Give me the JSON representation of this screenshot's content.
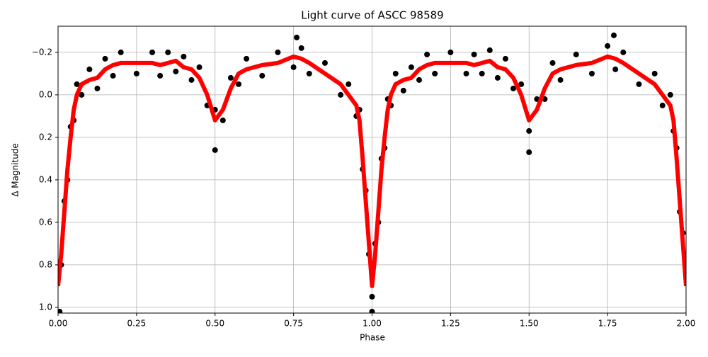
{
  "chart_data": {
    "type": "scatter",
    "title": "Light curve of ASCC 98589",
    "xlabel": "Phase",
    "ylabel": "Δ Magnitude",
    "xlim": [
      0,
      2
    ],
    "ylim": [
      -0.323,
      1.027
    ],
    "y_inverted": true,
    "grid": true,
    "xticks": [
      {
        "value": 0,
        "label": "0.00"
      },
      0.25,
      {
        "value": 0.5,
        "label": "0.50"
      },
      0.75,
      {
        "value": 1,
        "label": "1.00"
      },
      1.25,
      {
        "value": 1.5,
        "label": "1.50"
      },
      1.75,
      {
        "value": 2,
        "label": "2.00"
      }
    ],
    "yticks": [
      {
        "value": -0.2,
        "label": "−0.2"
      },
      {
        "value": 0,
        "label": "0.0"
      },
      0.2,
      0.4,
      0.6,
      0.8,
      {
        "value": 1,
        "label": "1.0"
      }
    ],
    "series": [
      {
        "type": "scatter",
        "color": "#000000",
        "x": [
          0,
          0.01,
          0.02,
          0.03,
          0.04,
          0.05,
          0.06,
          0.075,
          0.1,
          0.125,
          0.15,
          0.175,
          0.2,
          0.25,
          0.3,
          0.325,
          0.35,
          0.375,
          0.4,
          0.425,
          0.45,
          0.475,
          0.5,
          0.525,
          0.55,
          0.575,
          0.6,
          0.65,
          0.7,
          0.75,
          0.775,
          0.8,
          0.85,
          0.9,
          0.925,
          0.95,
          0.96,
          0.97,
          0.98,
          0.99,
          1,
          1.01,
          1.02,
          1.03,
          1.04,
          1.05,
          1.06,
          1.075,
          1.1,
          1.125,
          1.15,
          1.175,
          1.2,
          1.25,
          1.3,
          1.325,
          1.35,
          1.375,
          1.4,
          1.425,
          1.45,
          1.475,
          1.5,
          1.525,
          1.55,
          1.575,
          1.6,
          1.65,
          1.7,
          1.75,
          1.775,
          1.8,
          1.85,
          1.9,
          1.925,
          1.95,
          1.96,
          1.97,
          1.98,
          1.99,
          2,
          0.76,
          1.77,
          0.5,
          1.5,
          0.005,
          1.0
        ],
        "values": [
          0.85,
          0.8,
          0.5,
          0.4,
          0.15,
          0.12,
          -0.05,
          0.0,
          -0.12,
          -0.03,
          -0.17,
          -0.09,
          -0.2,
          -0.1,
          -0.2,
          -0.09,
          -0.2,
          -0.11,
          -0.18,
          -0.07,
          -0.13,
          0.05,
          0.07,
          0.12,
          -0.08,
          -0.05,
          -0.17,
          -0.09,
          -0.2,
          -0.13,
          -0.22,
          -0.1,
          -0.15,
          0.0,
          -0.05,
          0.1,
          0.07,
          0.35,
          0.45,
          0.75,
          0.95,
          0.7,
          0.6,
          0.3,
          0.25,
          0.02,
          0.05,
          -0.1,
          -0.02,
          -0.13,
          -0.07,
          -0.19,
          -0.1,
          -0.2,
          -0.1,
          -0.19,
          -0.1,
          -0.21,
          -0.08,
          -0.17,
          -0.03,
          -0.05,
          0.17,
          0.02,
          0.02,
          -0.15,
          -0.07,
          -0.19,
          -0.1,
          -0.23,
          -0.12,
          -0.2,
          -0.05,
          -0.1,
          0.05,
          0.0,
          0.17,
          0.25,
          0.55,
          0.65,
          0.85,
          -0.27,
          -0.28,
          0.26,
          0.27,
          1.02,
          1.02
        ]
      },
      {
        "type": "line",
        "color": "#ff0000",
        "x": [
          0,
          0.01,
          0.02,
          0.03,
          0.04,
          0.05,
          0.06,
          0.075,
          0.1,
          0.125,
          0.15,
          0.175,
          0.2,
          0.25,
          0.3,
          0.325,
          0.35,
          0.375,
          0.4,
          0.425,
          0.45,
          0.475,
          0.5,
          0.525,
          0.55,
          0.575,
          0.6,
          0.65,
          0.7,
          0.75,
          0.775,
          0.8,
          0.85,
          0.9,
          0.925,
          0.95,
          0.96,
          0.97,
          0.98,
          0.99,
          1,
          1.01,
          1.02,
          1.03,
          1.04,
          1.05,
          1.06,
          1.075,
          1.1,
          1.125,
          1.15,
          1.175,
          1.2,
          1.25,
          1.3,
          1.325,
          1.35,
          1.375,
          1.4,
          1.425,
          1.45,
          1.475,
          1.5,
          1.525,
          1.55,
          1.575,
          1.6,
          1.65,
          1.7,
          1.75,
          1.775,
          1.8,
          1.85,
          1.9,
          1.925,
          1.95,
          1.96,
          1.97,
          1.98,
          1.99,
          2
        ],
        "values": [
          0.9,
          0.75,
          0.55,
          0.35,
          0.2,
          0.07,
          0.0,
          -0.05,
          -0.07,
          -0.08,
          -0.12,
          -0.14,
          -0.15,
          -0.15,
          -0.15,
          -0.14,
          -0.15,
          -0.16,
          -0.13,
          -0.12,
          -0.08,
          0.0,
          0.12,
          0.07,
          -0.03,
          -0.1,
          -0.12,
          -0.14,
          -0.15,
          -0.18,
          -0.17,
          -0.15,
          -0.1,
          -0.05,
          0.0,
          0.05,
          0.12,
          0.3,
          0.5,
          0.7,
          0.9,
          0.75,
          0.55,
          0.35,
          0.2,
          0.07,
          0.0,
          -0.05,
          -0.07,
          -0.08,
          -0.12,
          -0.14,
          -0.15,
          -0.15,
          -0.15,
          -0.14,
          -0.15,
          -0.16,
          -0.13,
          -0.12,
          -0.08,
          0.0,
          0.12,
          0.07,
          -0.03,
          -0.1,
          -0.12,
          -0.14,
          -0.15,
          -0.18,
          -0.17,
          -0.15,
          -0.1,
          -0.05,
          0.0,
          0.05,
          0.12,
          0.3,
          0.5,
          0.7,
          0.9
        ]
      }
    ]
  }
}
